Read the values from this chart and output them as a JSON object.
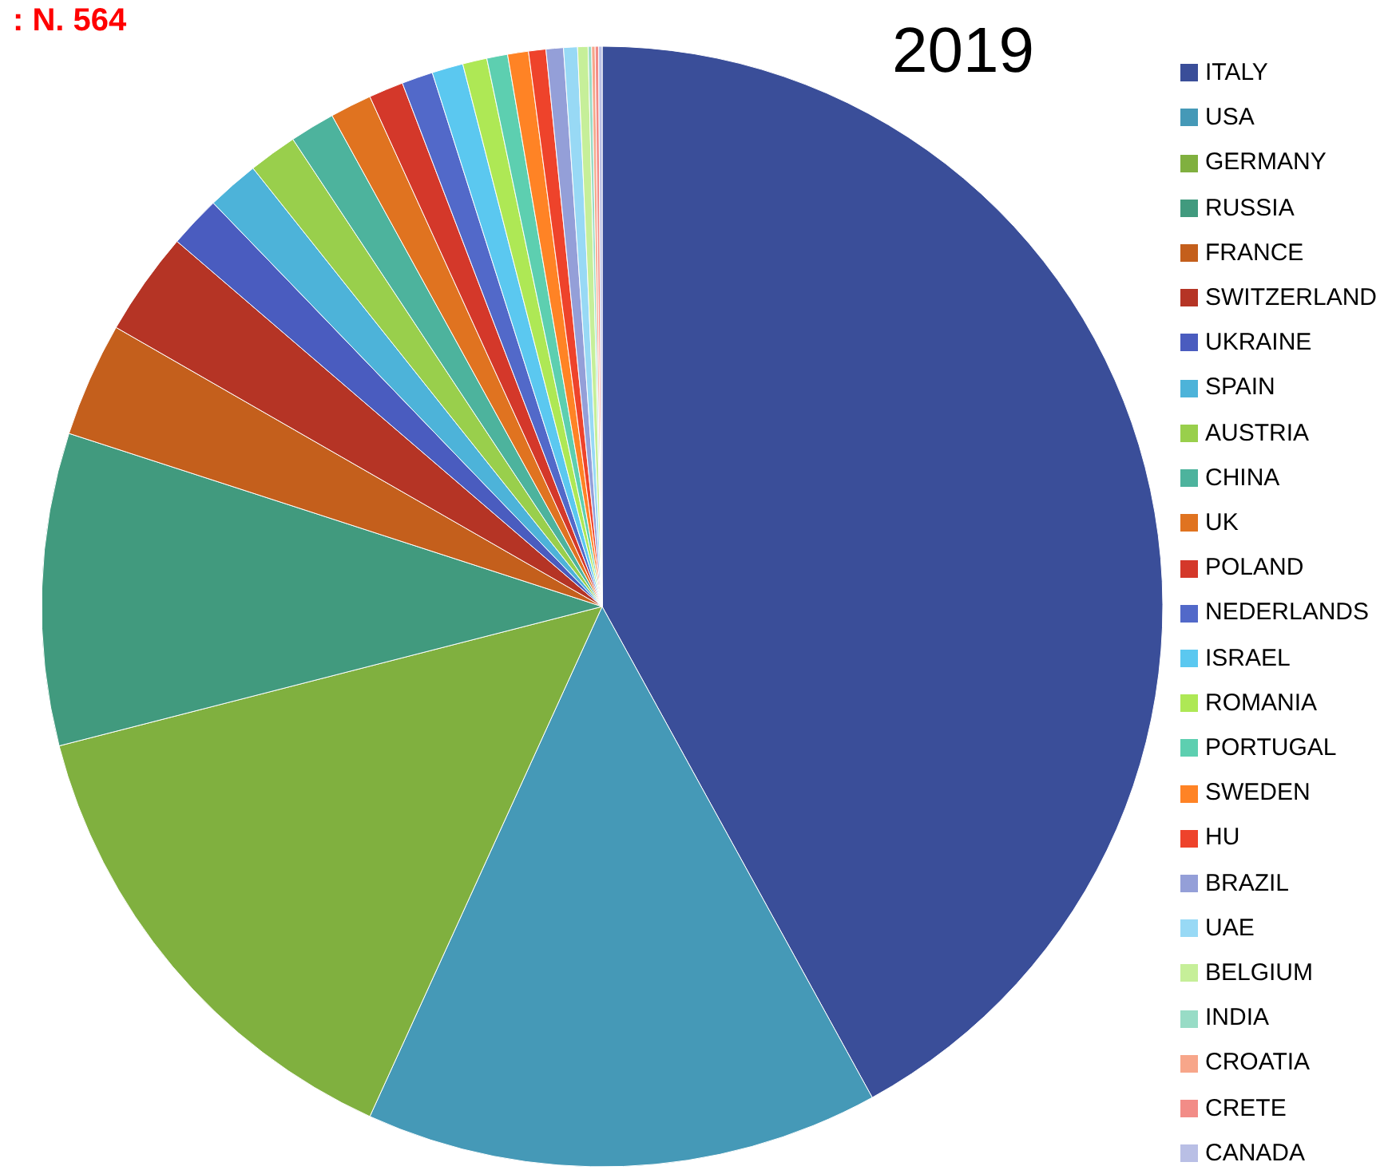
{
  "chart_data": {
    "type": "pie",
    "title": "2019",
    "annotations": [
      ": N. 564"
    ],
    "legend": "right",
    "categories": [
      "ITALY",
      "USA",
      "GERMANY",
      "RUSSIA",
      "FRANCE",
      "SWITZERLAND",
      "UKRAINE",
      "SPAIN",
      "AUSTRIA",
      "CHINA",
      "UK",
      "POLAND",
      "NEDERLANDS",
      "ISRAEL",
      "ROMANIA",
      "PORTUGAL",
      "SWEDEN",
      "HU",
      "BRAZIL",
      "UAE",
      "BELGIUM",
      "INDIA",
      "CROATIA",
      "CRETE",
      "CANADA"
    ],
    "values": [
      42.0,
      14.8,
      14.2,
      9.0,
      3.3,
      3.0,
      1.5,
      1.5,
      1.4,
      1.3,
      1.2,
      1.0,
      0.9,
      0.9,
      0.7,
      0.6,
      0.6,
      0.5,
      0.5,
      0.4,
      0.3,
      0.1,
      0.1,
      0.1,
      0.1
    ],
    "colors": [
      "#3a4e99",
      "#4599b7",
      "#80b03f",
      "#419a7e",
      "#c45f1c",
      "#b53425",
      "#4a5cbf",
      "#4db3d9",
      "#99cf4c",
      "#4db39d",
      "#e07320",
      "#d4382a",
      "#5269c9",
      "#5bc8f0",
      "#aee855",
      "#5dcfb0",
      "#ff8325",
      "#ee432b",
      "#949fd8",
      "#98d9f5",
      "#c6ef99",
      "#98dcc6",
      "#f7a68a",
      "#f28c87",
      "#b9bfe5"
    ]
  }
}
